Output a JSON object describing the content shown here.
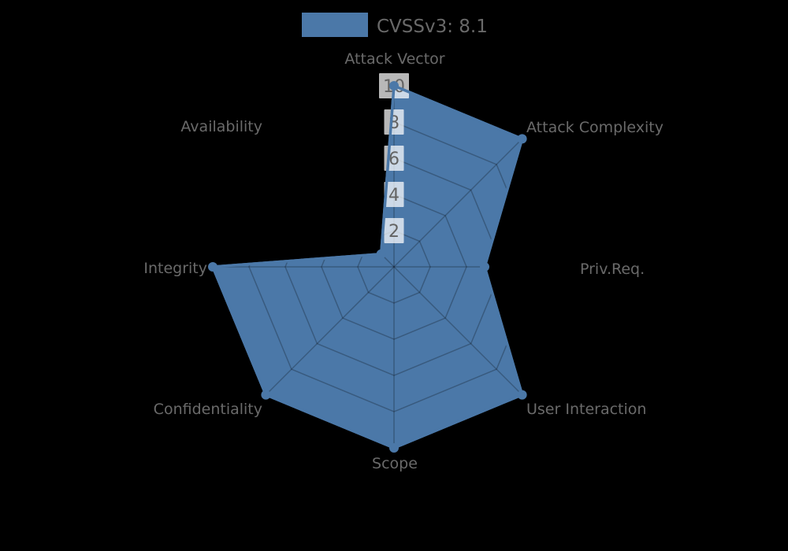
{
  "page": {
    "background": "#000000"
  },
  "legend": {
    "label": "CVSSv3: 8.1",
    "swatch_color": "#4b78a8",
    "text_color": "#696969"
  },
  "chart_data": {
    "type": "radar",
    "title": "",
    "categories": [
      "Attack Vector",
      "Attack Complexity",
      "Priv.Req.",
      "User Interaction",
      "Scope",
      "Confidentiality",
      "Integrity",
      "Availability"
    ],
    "series": [
      {
        "name": "CVSSv3: 8.1",
        "values": [
          10,
          10,
          5,
          10,
          10,
          10,
          10,
          1
        ]
      }
    ],
    "radial_ticks": [
      2,
      4,
      6,
      8,
      10
    ],
    "r_min": 0,
    "r_max": 10,
    "grid": true,
    "grid_shape": "polygon-web",
    "legend_position": "top-center",
    "colors": {
      "fill": "#4b78a8",
      "stroke": "#4b78a8",
      "marker": "#4b78a8",
      "grid_line": "rgba(0,0,0,0.25)",
      "axis_label": "#6a6a6a",
      "tick_label": "#636363",
      "tick_box": "rgba(255,255,255,0.72)"
    }
  }
}
